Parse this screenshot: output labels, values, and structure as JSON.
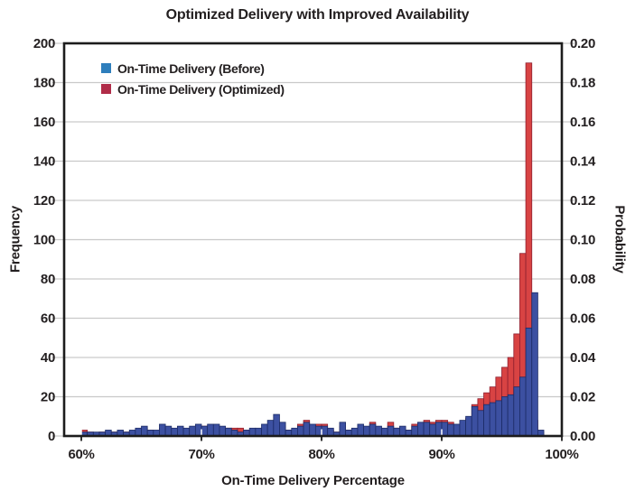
{
  "title": "Optimized Delivery with Improved Availability",
  "colors": {
    "background": "#ffffff",
    "grid": "#c9c9c9",
    "border": "#1c1c1c",
    "text": "#231f20",
    "tick_white_overlay": "#ffffff"
  },
  "chart_data": {
    "type": "bar",
    "subtype": "overlaid-histogram",
    "title": "Optimized Delivery with Improved Availability",
    "xlabel": "On-Time Delivery Percentage",
    "ylabel_left": "Frequency",
    "ylabel_right": "Probability",
    "xlim": [
      58.57,
      100
    ],
    "ylim": [
      0,
      200
    ],
    "ylim_right": [
      0.0,
      0.2
    ],
    "bin_start": 60.0,
    "bin_width": 0.5,
    "grid": "horizontal",
    "legend_position": "upper-left-inside",
    "x_tick_labels": [
      "60%",
      "70%",
      "80%",
      "90%",
      "100%"
    ],
    "x_tick_values": [
      60,
      70,
      80,
      90,
      100
    ],
    "y_ticks_left": [
      0,
      20,
      40,
      60,
      80,
      100,
      120,
      140,
      160,
      180,
      200
    ],
    "y_ticks_right": [
      "0.00",
      "0.02",
      "0.04",
      "0.06",
      "0.08",
      "0.10",
      "0.12",
      "0.14",
      "0.16",
      "0.18",
      "0.20"
    ],
    "series": [
      {
        "name": "On-Time Delivery (Before)",
        "color": "#3c50a1",
        "edge_color": "#1c2b66",
        "legend_swatch_color": "#2e7ebc",
        "values": [
          2,
          2,
          2,
          2,
          3,
          2,
          3,
          2,
          3,
          4,
          5,
          3,
          3,
          6,
          5,
          4,
          5,
          4,
          5,
          6,
          5,
          6,
          6,
          5,
          4,
          3,
          2,
          3,
          4,
          4,
          6,
          8,
          11,
          7,
          3,
          4,
          5,
          7,
          6,
          5,
          5,
          4,
          2,
          7,
          3,
          4,
          6,
          5,
          6,
          5,
          4,
          5,
          4,
          5,
          3,
          5,
          7,
          7,
          6,
          7,
          7,
          6,
          6,
          8,
          10,
          15,
          13,
          16,
          17,
          18,
          20,
          21,
          25,
          30,
          55,
          73,
          3
        ]
      },
      {
        "name": "On-Time Delivery (Optimized)",
        "color": "#d84343",
        "edge_color": "#8e1f2f",
        "legend_swatch_color": "#b02c48",
        "values": [
          3,
          2,
          1,
          2,
          2,
          2,
          2,
          2,
          2,
          3,
          4,
          3,
          2,
          4,
          4,
          3,
          4,
          3,
          4,
          5,
          5,
          4,
          5,
          4,
          4,
          4,
          4,
          3,
          3,
          3,
          4,
          5,
          6,
          5,
          3,
          3,
          6,
          8,
          5,
          6,
          6,
          3,
          2,
          5,
          3,
          3,
          4,
          4,
          7,
          4,
          3,
          7,
          4,
          4,
          3,
          6,
          5,
          8,
          7,
          8,
          8,
          7,
          5,
          6,
          9,
          16,
          19,
          22,
          25,
          30,
          35,
          40,
          52,
          93,
          190,
          8,
          2
        ]
      }
    ],
    "draw_order_note": "Optimized (red) drawn behind, Before (blue) drawn on top"
  }
}
